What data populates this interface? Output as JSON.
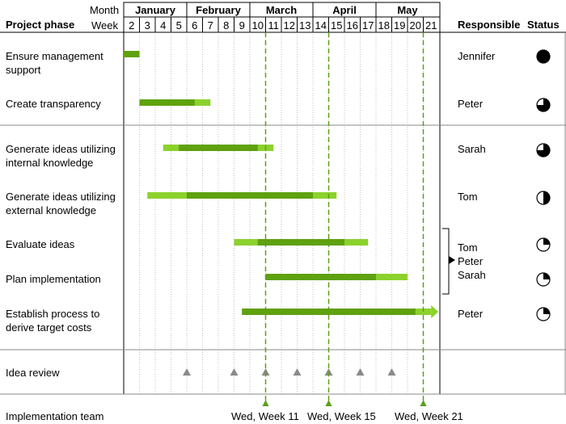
{
  "chart_data": {
    "type": "gantt",
    "header": {
      "month_label": "Month",
      "week_label": "Week",
      "phase_label": "Project phase",
      "responsible_label": "Responsible",
      "status_label": "Status"
    },
    "months": [
      {
        "name": "January",
        "start_week": 2,
        "end_week": 5
      },
      {
        "name": "February",
        "start_week": 6,
        "end_week": 9
      },
      {
        "name": "March",
        "start_week": 10,
        "end_week": 13
      },
      {
        "name": "April",
        "start_week": 14,
        "end_week": 17
      },
      {
        "name": "May",
        "start_week": 18,
        "end_week": 21
      }
    ],
    "weeks": [
      2,
      3,
      4,
      5,
      6,
      7,
      8,
      9,
      10,
      11,
      12,
      13,
      14,
      15,
      16,
      17,
      18,
      19,
      20,
      21
    ],
    "tasks": [
      {
        "line1": "Ensure management",
        "line2": "support",
        "plan_start": 2,
        "plan_end": 3,
        "actual_start": 2,
        "actual_end": 3,
        "responsible": "Jennifer",
        "status_pct": 100
      },
      {
        "line1": "Create transparency",
        "line2": "",
        "plan_start": 3,
        "plan_end": 7.5,
        "actual_start": 3,
        "actual_end": 6.5,
        "responsible": "Peter",
        "status_pct": 75
      },
      {
        "line1": "Generate ideas utilizing",
        "line2": "internal knowledge",
        "plan_start": 4.5,
        "plan_end": 11.5,
        "actual_start": 5.5,
        "actual_end": 10.5,
        "responsible": "Sarah",
        "status_pct": 75
      },
      {
        "line1": "Generate ideas utilizing",
        "line2": "external knowledge",
        "plan_start": 3.5,
        "plan_end": 15.5,
        "actual_start": 6,
        "actual_end": 14,
        "responsible": "Tom",
        "status_pct": 50
      },
      {
        "line1": "Evaluate ideas",
        "line2": "",
        "plan_start": 9,
        "plan_end": 17.5,
        "actual_start": 10.5,
        "actual_end": 16,
        "responsible_group": [
          "Tom",
          "Peter",
          "Sarah"
        ],
        "status_pct": 25
      },
      {
        "line1": "Plan implementation",
        "line2": "",
        "plan_start": 11,
        "plan_end": 20,
        "actual_start": 11,
        "actual_end": 18,
        "responsible": "",
        "status_pct": 25
      },
      {
        "line1": "Establish process to",
        "line2": "derive target costs",
        "plan_start": 9.5,
        "plan_end": 21.5,
        "actual_start": 9.5,
        "actual_end": 20.5,
        "arrow": true,
        "responsible": "Peter",
        "status_pct": 25
      }
    ],
    "idea_review": {
      "label": "Idea review",
      "weeks": [
        6,
        9,
        11,
        13,
        15,
        17,
        19
      ]
    },
    "implementation_team": {
      "label": "Implementation team",
      "milestones": [
        {
          "week": 11,
          "label": "Wed, Week 11"
        },
        {
          "week": 15,
          "label": "Wed, Week 15"
        },
        {
          "week": 21,
          "label": "Wed, Week 21"
        }
      ]
    },
    "colors": {
      "plan": "#8cd12d",
      "actual": "#5fa10e",
      "milestone": "#5aa01b",
      "review": "#8a8a8a",
      "grid": "#999999"
    }
  }
}
